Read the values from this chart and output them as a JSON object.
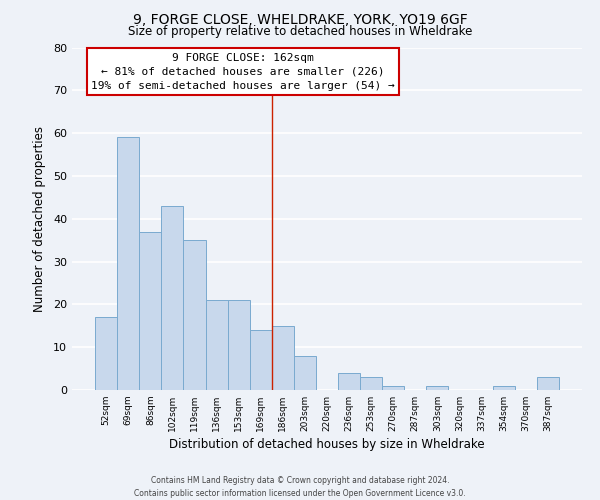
{
  "title": "9, FORGE CLOSE, WHELDRAKE, YORK, YO19 6GF",
  "subtitle": "Size of property relative to detached houses in Wheldrake",
  "xlabel": "Distribution of detached houses by size in Wheldrake",
  "ylabel": "Number of detached properties",
  "bar_color": "#c8d8ec",
  "bar_edge_color": "#7aaacf",
  "background_color": "#eef2f8",
  "bin_labels": [
    "52sqm",
    "69sqm",
    "86sqm",
    "102sqm",
    "119sqm",
    "136sqm",
    "153sqm",
    "169sqm",
    "186sqm",
    "203sqm",
    "220sqm",
    "236sqm",
    "253sqm",
    "270sqm",
    "287sqm",
    "303sqm",
    "320sqm",
    "337sqm",
    "354sqm",
    "370sqm",
    "387sqm"
  ],
  "bar_heights": [
    17,
    59,
    37,
    43,
    35,
    21,
    21,
    14,
    15,
    8,
    0,
    4,
    3,
    1,
    0,
    1,
    0,
    0,
    1,
    0,
    3
  ],
  "ylim": [
    0,
    80
  ],
  "yticks": [
    0,
    10,
    20,
    30,
    40,
    50,
    60,
    70,
    80
  ],
  "annotation_box_text_line1": "9 FORGE CLOSE: 162sqm",
  "annotation_box_text_line2": "← 81% of detached houses are smaller (226)",
  "annotation_box_text_line3": "19% of semi-detached houses are larger (54) →",
  "vline_x_index": 7.5,
  "vline_color": "#cc2200",
  "footer_line1": "Contains HM Land Registry data © Crown copyright and database right 2024.",
  "footer_line2": "Contains public sector information licensed under the Open Government Licence v3.0."
}
